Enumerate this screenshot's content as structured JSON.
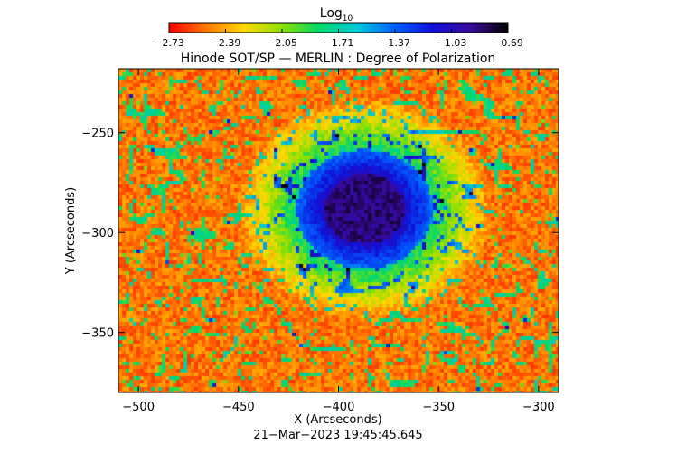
{
  "chart_data": {
    "type": "heatmap",
    "title": "Hinode SOT/SP — MERLIN : Degree of Polarization",
    "xlabel": "X (Arcseconds)",
    "ylabel": "Y (Arcseconds)",
    "xlim": [
      -510,
      -290
    ],
    "ylim": [
      -380,
      -218
    ],
    "x_ticks": [
      -500,
      -450,
      -400,
      -350,
      -300
    ],
    "x_tick_labels": [
      "−500",
      "−450",
      "−400",
      "−350",
      "−300"
    ],
    "y_ticks": [
      -250,
      -300,
      -350
    ],
    "y_tick_labels": [
      "−250",
      "−300",
      "−350"
    ],
    "colorbar": {
      "label_main": "Log",
      "label_sub": "10",
      "min": -2.73,
      "max": -0.69,
      "ticks": [
        -2.73,
        -2.39,
        -2.05,
        -1.71,
        -1.37,
        -1.03,
        -0.69
      ],
      "tick_labels": [
        "−2.73",
        "−2.39",
        "−2.05",
        "−1.71",
        "−1.37",
        "−1.03",
        "−0.69"
      ],
      "colors": [
        "#ff0000",
        "#ff7a00",
        "#ffd800",
        "#8ce000",
        "#00d86a",
        "#00c8d8",
        "#0060ff",
        "#1010d8",
        "#3a0a9a",
        "#000000"
      ]
    },
    "features": {
      "sunspot_umbra_center": [
        -388,
        -287
      ],
      "sunspot_umbra_radius": 20,
      "penumbra_radius": 34
    },
    "timestamp": "21−Mar−2023 19:45:45.645"
  },
  "colors": {
    "background": "#ffffff",
    "axis": "#000000"
  }
}
